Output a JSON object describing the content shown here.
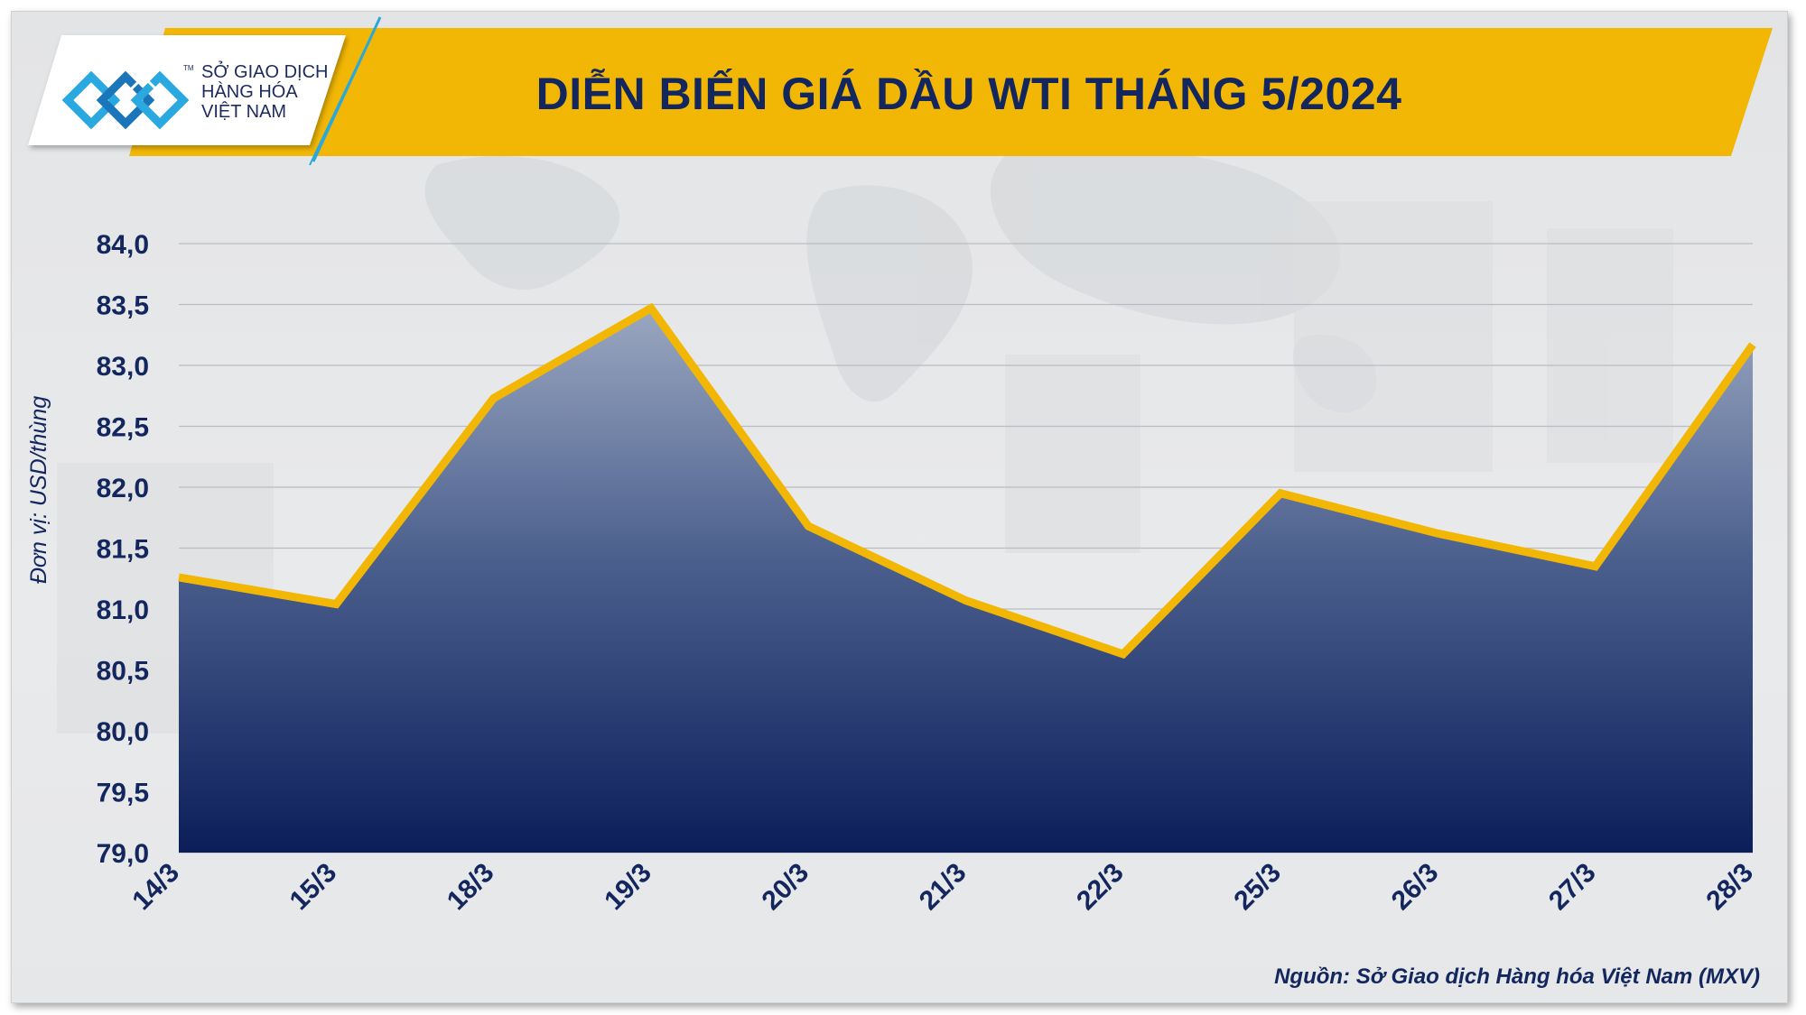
{
  "header": {
    "title": "DIỄN BIẾN GIÁ DẦU WTI THÁNG 5/2024",
    "logo_lines": [
      "SỞ GIAO DỊCH",
      "HÀNG HÓA",
      "VIỆT NAM"
    ],
    "logo_tm": "TM",
    "banner_color": "#f2b705"
  },
  "source": "Nguồn: Sở Giao dịch Hàng hóa Việt Nam (MXV)",
  "chart_data": {
    "type": "area",
    "title": "DIỄN BIẾN GIÁ DẦU WTI THÁNG 5/2024",
    "ylabel": "Đơn vị: USD/thùng",
    "xlabel": "",
    "categories": [
      "14/3",
      "15/3",
      "18/3",
      "19/3",
      "20/3",
      "21/3",
      "22/3",
      "25/3",
      "26/3",
      "27/3",
      "28/3"
    ],
    "series": [
      {
        "values": [
          81.26,
          81.04,
          82.73,
          83.47,
          81.68,
          81.07,
          80.63,
          81.95,
          81.62,
          81.35,
          83.17
        ],
        "line_color": "#f2b705",
        "fill_top_color": "#9aa7c0",
        "fill_bottom_color": "#0b1e5a"
      }
    ],
    "ylim": [
      79.0,
      84.0
    ],
    "yticks": [
      "79,0",
      "79,5",
      "80,0",
      "80,5",
      "81,0",
      "81,5",
      "82,0",
      "82,5",
      "83,0",
      "83,5",
      "84,0"
    ],
    "grid": true,
    "legend": "none"
  }
}
